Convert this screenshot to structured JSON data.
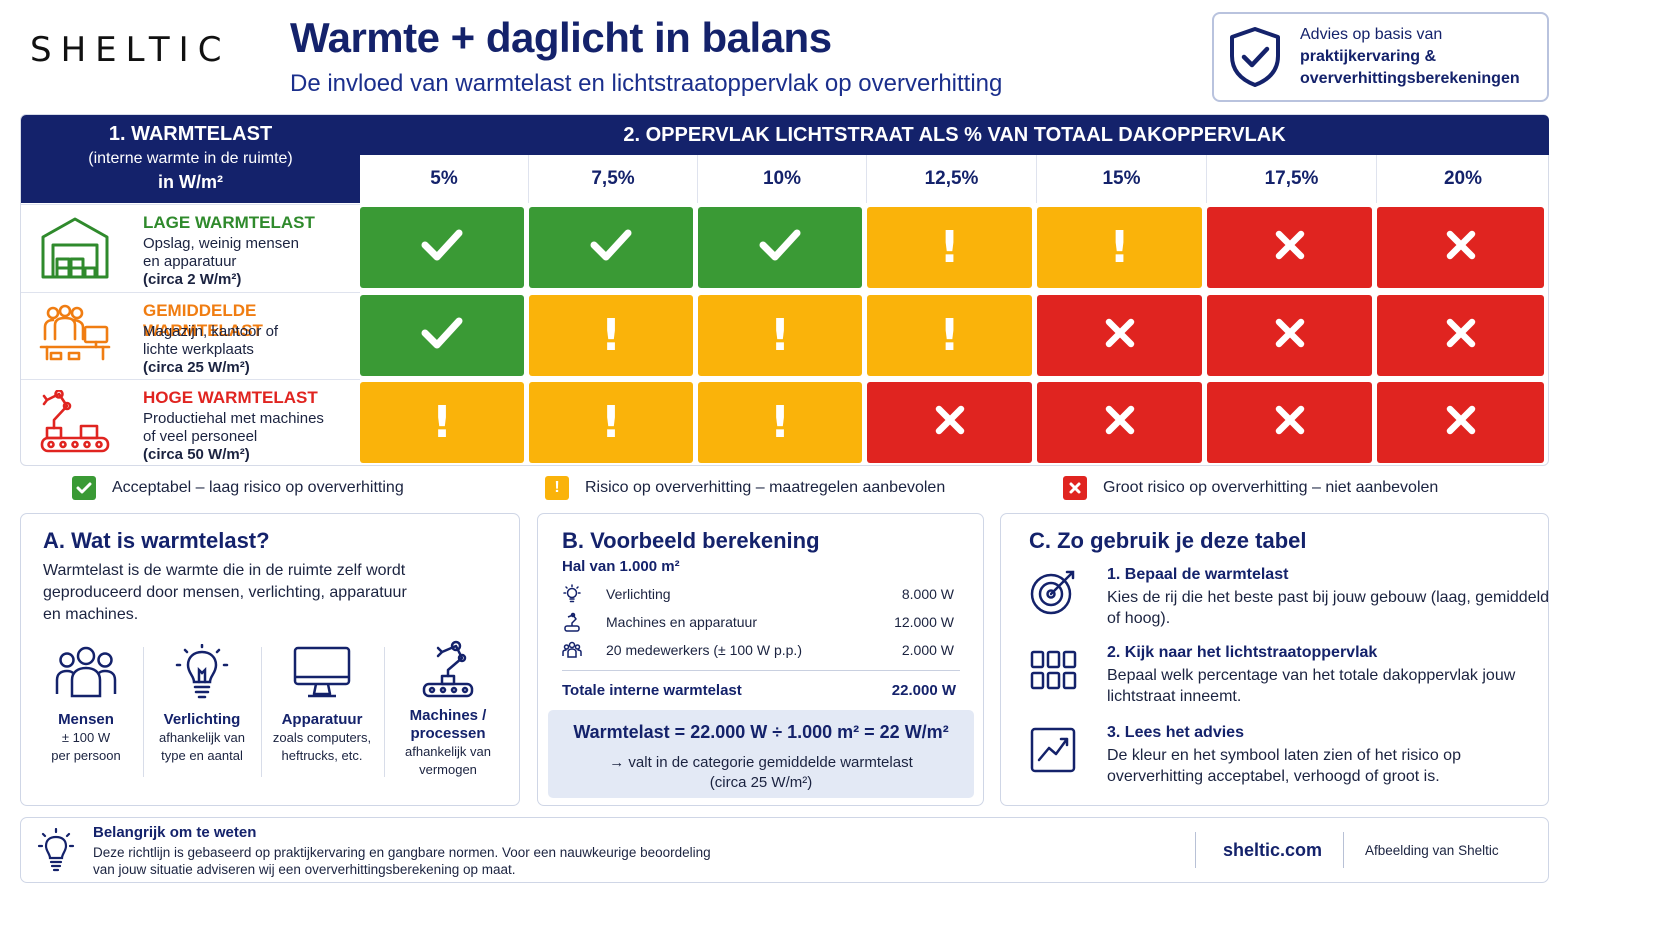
{
  "header": {
    "logo": "SHELTIC",
    "title": "Warmte + daglicht in balans",
    "subtitle": "De invloed van warmtelast en lichtstraatoppervlak op oververhitting",
    "advice_line1": "Advies op basis van",
    "advice_line2": "praktijkervaring &",
    "advice_line3": "oververhittingsberekeningen"
  },
  "matrix": {
    "left_header_1": "1. WARMTELAST",
    "left_header_2": "(interne warmte in de ruimte)",
    "left_header_3": "in W/m²",
    "right_header": "2. OPPERVLAK LICHTSTRAAT ALS % VAN TOTAAL DAKOPPERVLAK",
    "percentages": [
      "5%",
      "7,5%",
      "10%",
      "12,5%",
      "15%",
      "17,5%",
      "20%"
    ],
    "rows": [
      {
        "title": "LAGE WARMTELAST",
        "title_color": "#2f8a2c",
        "desc1": "Opslag, weinig mensen",
        "desc2": "en apparatuur",
        "desc3": "(circa 2 W/m²)",
        "icon": "warehouse-icon",
        "cells": [
          "green",
          "green",
          "green",
          "orange",
          "orange",
          "red",
          "red"
        ]
      },
      {
        "title": "GEMIDDELDE WARMTELAST",
        "title_color": "#f07d12",
        "desc1": "Magazijn, kantoor of",
        "desc2": "lichte werkplaats",
        "desc3": "(circa 25 W/m²)",
        "icon": "office-people-icon",
        "cells": [
          "green",
          "orange",
          "orange",
          "orange",
          "red",
          "red",
          "red"
        ]
      },
      {
        "title": "HOGE WARMTELAST",
        "title_color": "#e02420",
        "desc1": "Productiehal met machines",
        "desc2": "of veel personeel",
        "desc3": "(circa 50 W/m²)",
        "icon": "factory-robot-icon",
        "cells": [
          "orange",
          "orange",
          "orange",
          "red",
          "red",
          "red",
          "red"
        ]
      }
    ]
  },
  "legend": {
    "green": "Acceptabel – laag risico op oververhitting",
    "orange": "Risico op oververhitting – maatregelen aanbevolen",
    "red": "Groot risico op oververhitting – niet aanbevolen"
  },
  "colors": {
    "green": "#3a9a35",
    "orange": "#fab30a",
    "red": "#e02420",
    "navy": "#14226b"
  },
  "panel_a": {
    "title": "A. Wat is warmtelast?",
    "text1": "Warmtelast is de warmte die in de ruimte zelf wordt",
    "text2": "geproduceerd door mensen, verlichting, apparatuur",
    "text3": "en machines.",
    "items": [
      {
        "name": "Mensen",
        "line1": "± 100 W",
        "line2": "per persoon",
        "line3": ""
      },
      {
        "name": "Verlichting",
        "line1": "afhankelijk van",
        "line2": "type en aantal",
        "line3": ""
      },
      {
        "name": "Apparatuur",
        "line1": "zoals computers,",
        "line2": "heftrucks, etc.",
        "line3": ""
      },
      {
        "name": "Machines /",
        "name2": "processen",
        "line1": "afhankelijk van",
        "line2": "vermogen",
        "line3": ""
      }
    ]
  },
  "panel_b": {
    "title": "B. Voorbeeld berekening",
    "subtitle": "Hal van 1.000 m²",
    "rows": [
      {
        "label": "Verlichting",
        "value": "8.000 W"
      },
      {
        "label": "Machines en apparatuur",
        "value": "12.000 W"
      },
      {
        "label": "20 medewerkers (± 100 W p.p.)",
        "value": "2.000 W"
      }
    ],
    "total_label": "Totale interne warmtelast",
    "total_value": "22.000 W",
    "equation": "Warmtelast = 22.000 W ÷ 1.000 m² = 22 W/m²",
    "result1": "→ valt in de categorie gemiddelde warmtelast",
    "result2": "(circa 25 W/m²)"
  },
  "panel_c": {
    "title": "C. Zo gebruik je deze tabel",
    "steps": [
      {
        "title": "1. Bepaal de warmtelast",
        "desc": "Kies de rij die het beste past bij jouw gebouw (laag, gemiddeld of hoog)."
      },
      {
        "title": "2. Kijk naar het lichtstraatoppervlak",
        "desc": "Bepaal welk percentage van het totale dakoppervlak jouw lichtstraat inneemt."
      },
      {
        "title": "3. Lees het advies",
        "desc": "De kleur en het symbool laten zien of het risico op oververhitting acceptabel, verhoogd of groot is."
      }
    ]
  },
  "footer": {
    "title": "Belangrijk om te weten",
    "text1": "Deze richtlijn is gebaseerd op praktijkervaring en gangbare normen. Voor een nauwkeurige beoordeling",
    "text2": "van jouw situatie adviseren wij een oververhittingsberekening op maat.",
    "site": "sheltic.com",
    "credit": "Afbeelding van Sheltic"
  }
}
